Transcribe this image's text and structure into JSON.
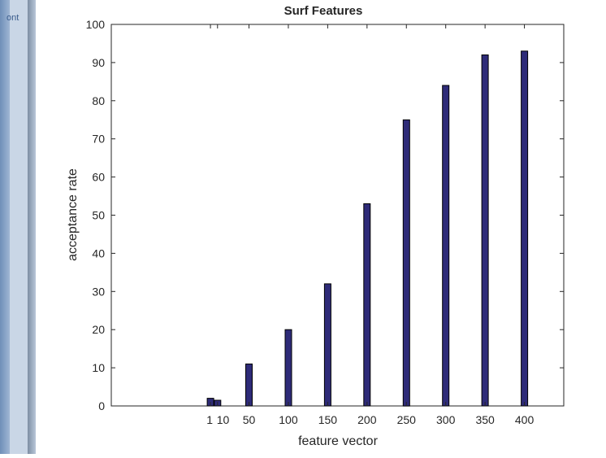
{
  "side_tab_text": "ont",
  "chart_data": {
    "type": "bar",
    "title": "Surf Features",
    "xlabel": "feature vector",
    "ylabel": "acceptance rate",
    "ylim": [
      0,
      100
    ],
    "yticks": [
      0,
      10,
      20,
      30,
      40,
      50,
      60,
      70,
      80,
      90,
      100
    ],
    "xlim": [
      -125,
      450
    ],
    "xticks": [
      1,
      10,
      50,
      100,
      150,
      200,
      250,
      300,
      350,
      400
    ],
    "xtick_labels": [
      "1",
      "10",
      "50",
      "100",
      "150",
      "200",
      "250",
      "300",
      "350",
      "400"
    ],
    "x": [
      1,
      10,
      50,
      100,
      150,
      200,
      250,
      300,
      350,
      400
    ],
    "values": [
      2,
      1.5,
      11,
      20,
      32,
      53,
      75,
      84,
      92,
      93
    ],
    "bar_color": "#2e2b78",
    "bar_edge_color": "#000000",
    "grid": false
  }
}
